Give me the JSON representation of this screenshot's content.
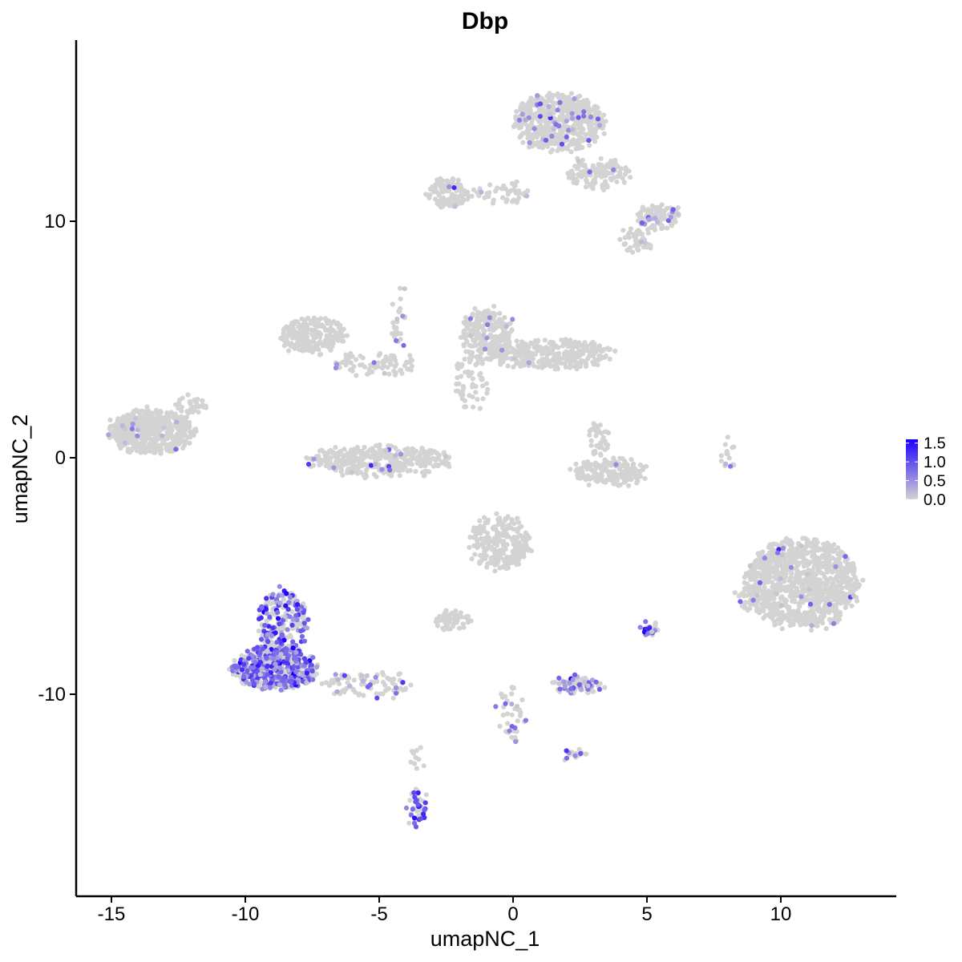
{
  "chart_data": {
    "type": "scatter",
    "title": "Dbp",
    "xlabel": "umapNC_1",
    "ylabel": "umapNC_2",
    "xlim": [
      -16.5,
      14.5
    ],
    "ylim": [
      -18.5,
      17.5
    ],
    "xticks": [
      -15,
      -10,
      -5,
      0,
      5,
      10
    ],
    "xtick_labels": [
      "-15",
      "-10",
      "-5",
      "0",
      "5",
      "10"
    ],
    "yticks": [
      -10,
      0,
      10
    ],
    "ytick_labels": [
      "-10",
      "0",
      "10"
    ],
    "grid": false,
    "colors": {
      "low": "#d3d3d3",
      "high": "#1f00ff"
    },
    "legend": {
      "position": "right",
      "min": 0.0,
      "max": 1.6,
      "ticks": [
        1.5,
        1.0,
        0.5,
        0.0
      ],
      "tick_labels": [
        "1.5",
        "1.0",
        "0.5",
        "0.0"
      ]
    },
    "clusters": [
      {
        "cx": -13.5,
        "cy": 1.1,
        "rx": 1.6,
        "ry": 0.9,
        "n": 500,
        "expr_frac": 0.02,
        "expr_mean": 0.4
      },
      {
        "cx": -12.0,
        "cy": 2.2,
        "rx": 0.6,
        "ry": 0.4,
        "n": 30,
        "expr_frac": 0.0,
        "expr_mean": 0.0
      },
      {
        "cx": -7.5,
        "cy": 5.2,
        "rx": 1.2,
        "ry": 0.7,
        "n": 220,
        "expr_frac": 0.0,
        "expr_mean": 0.0
      },
      {
        "cx": -5.2,
        "cy": 4.0,
        "rx": 1.5,
        "ry": 0.5,
        "n": 80,
        "expr_frac": 0.03,
        "expr_mean": 0.3
      },
      {
        "cx": -5.0,
        "cy": -0.1,
        "rx": 2.7,
        "ry": 0.6,
        "n": 380,
        "expr_frac": 0.05,
        "expr_mean": 0.5
      },
      {
        "cx": -4.3,
        "cy": 6.0,
        "rx": 0.25,
        "ry": 1.4,
        "n": 30,
        "expr_frac": 0.2,
        "expr_mean": 0.6
      },
      {
        "cx": -2.4,
        "cy": 11.2,
        "rx": 0.8,
        "ry": 0.6,
        "n": 120,
        "expr_frac": 0.02,
        "expr_mean": 0.3
      },
      {
        "cx": -0.5,
        "cy": 11.2,
        "rx": 1.2,
        "ry": 0.35,
        "n": 50,
        "expr_frac": 0.05,
        "expr_mean": 0.4
      },
      {
        "cx": 1.7,
        "cy": 14.2,
        "rx": 1.7,
        "ry": 1.2,
        "n": 550,
        "expr_frac": 0.08,
        "expr_mean": 0.6
      },
      {
        "cx": 3.2,
        "cy": 12.0,
        "rx": 1.2,
        "ry": 0.6,
        "n": 120,
        "expr_frac": 0.03,
        "expr_mean": 0.4
      },
      {
        "cx": 5.4,
        "cy": 10.2,
        "rx": 0.8,
        "ry": 0.5,
        "n": 100,
        "expr_frac": 0.15,
        "expr_mean": 0.6
      },
      {
        "cx": 4.6,
        "cy": 9.2,
        "rx": 0.6,
        "ry": 0.5,
        "n": 50,
        "expr_frac": 0.05,
        "expr_mean": 0.4
      },
      {
        "cx": -1.0,
        "cy": 5.2,
        "rx": 1.0,
        "ry": 1.1,
        "n": 220,
        "expr_frac": 0.04,
        "expr_mean": 0.4
      },
      {
        "cx": 1.4,
        "cy": 4.4,
        "rx": 2.3,
        "ry": 0.6,
        "n": 320,
        "expr_frac": 0.01,
        "expr_mean": 0.3
      },
      {
        "cx": -1.6,
        "cy": 3.2,
        "rx": 0.6,
        "ry": 1.1,
        "n": 60,
        "expr_frac": 0.0,
        "expr_mean": 0.0
      },
      {
        "cx": 3.6,
        "cy": -0.6,
        "rx": 1.4,
        "ry": 0.5,
        "n": 180,
        "expr_frac": 0.01,
        "expr_mean": 0.3
      },
      {
        "cx": 3.2,
        "cy": 0.8,
        "rx": 0.4,
        "ry": 0.8,
        "n": 40,
        "expr_frac": 0.0,
        "expr_mean": 0.0
      },
      {
        "cx": 10.8,
        "cy": -5.3,
        "rx": 2.1,
        "ry": 1.9,
        "n": 950,
        "expr_frac": 0.03,
        "expr_mean": 0.5
      },
      {
        "cx": 8.8,
        "cy": -5.8,
        "rx": 0.4,
        "ry": 0.6,
        "n": 40,
        "expr_frac": 0.05,
        "expr_mean": 0.4
      },
      {
        "cx": -0.5,
        "cy": -3.6,
        "rx": 1.1,
        "ry": 1.2,
        "n": 260,
        "expr_frac": 0.0,
        "expr_mean": 0.0
      },
      {
        "cx": -2.3,
        "cy": -6.9,
        "rx": 0.6,
        "ry": 0.35,
        "n": 60,
        "expr_frac": 0.0,
        "expr_mean": 0.0
      },
      {
        "cx": -8.6,
        "cy": -7.0,
        "rx": 0.9,
        "ry": 1.4,
        "n": 220,
        "expr_frac": 0.55,
        "expr_mean": 0.9
      },
      {
        "cx": -8.9,
        "cy": -8.9,
        "rx": 1.6,
        "ry": 0.9,
        "n": 500,
        "expr_frac": 0.6,
        "expr_mean": 0.8
      },
      {
        "cx": -5.5,
        "cy": -9.6,
        "rx": 1.6,
        "ry": 0.5,
        "n": 90,
        "expr_frac": 0.2,
        "expr_mean": 0.5
      },
      {
        "cx": 2.4,
        "cy": -9.6,
        "rx": 0.9,
        "ry": 0.3,
        "n": 90,
        "expr_frac": 0.5,
        "expr_mean": 0.6
      },
      {
        "cx": 0.0,
        "cy": -10.8,
        "rx": 0.5,
        "ry": 1.2,
        "n": 40,
        "expr_frac": 0.2,
        "expr_mean": 0.6
      },
      {
        "cx": 5.1,
        "cy": -7.2,
        "rx": 0.25,
        "ry": 0.4,
        "n": 20,
        "expr_frac": 0.5,
        "expr_mean": 0.8
      },
      {
        "cx": 2.3,
        "cy": -12.5,
        "rx": 0.4,
        "ry": 0.25,
        "n": 15,
        "expr_frac": 0.3,
        "expr_mean": 0.6
      },
      {
        "cx": -3.6,
        "cy": -14.8,
        "rx": 0.35,
        "ry": 0.8,
        "n": 45,
        "expr_frac": 0.5,
        "expr_mean": 1.0
      },
      {
        "cx": 8.0,
        "cy": 0.2,
        "rx": 0.3,
        "ry": 0.7,
        "n": 15,
        "expr_frac": 0.1,
        "expr_mean": 0.4
      },
      {
        "cx": -3.6,
        "cy": -12.8,
        "rx": 0.2,
        "ry": 0.8,
        "n": 10,
        "expr_frac": 0.0,
        "expr_mean": 0.0
      }
    ]
  }
}
